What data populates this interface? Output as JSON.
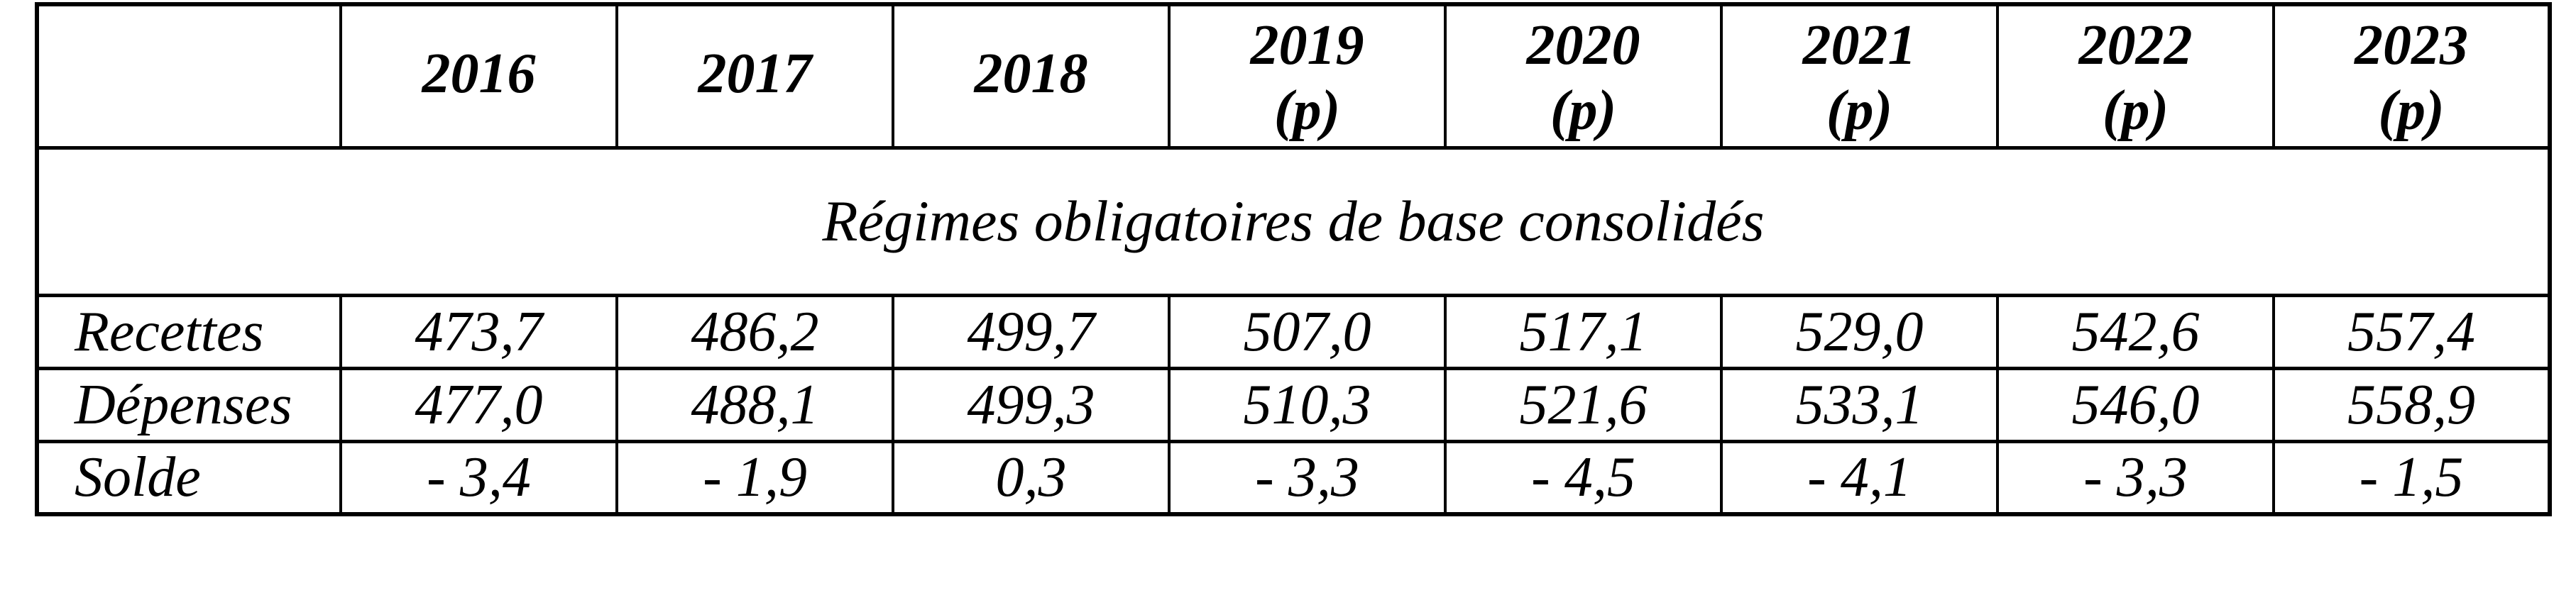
{
  "table": {
    "corner_label": "",
    "year_headers": [
      {
        "year": "2016",
        "note": ""
      },
      {
        "year": "2017",
        "note": ""
      },
      {
        "year": "2018",
        "note": ""
      },
      {
        "year": "2019",
        "note": "(p)"
      },
      {
        "year": "2020",
        "note": "(p)"
      },
      {
        "year": "2021",
        "note": "(p)"
      },
      {
        "year": "2022",
        "note": "(p)"
      },
      {
        "year": "2023",
        "note": "(p)"
      }
    ],
    "section_title": "Régimes obligatoires de base consolidés",
    "rows": [
      {
        "label": "Recettes",
        "values": [
          "473,7",
          "486,2",
          "499,7",
          "507,0",
          "517,1",
          "529,0",
          "542,6",
          "557,4"
        ]
      },
      {
        "label": "Dépenses",
        "values": [
          "477,0",
          "488,1",
          "499,3",
          "510,3",
          "521,6",
          "533,1",
          "546,0",
          "558,9"
        ]
      },
      {
        "label": "Solde",
        "values": [
          "- 3,4",
          "- 1,9",
          "0,3",
          "- 3,3",
          "- 4,5",
          "- 4,1",
          "- 3,3",
          "- 1,5"
        ]
      }
    ],
    "colors": {
      "border": "#000000",
      "text": "#000000",
      "background": "#ffffff"
    }
  }
}
